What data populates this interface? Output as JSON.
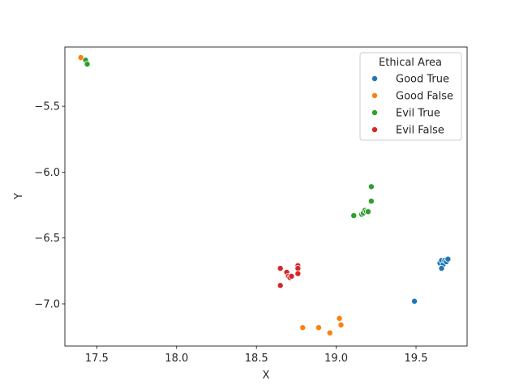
{
  "chart_data": {
    "type": "scatter",
    "title": "",
    "xlabel": "X",
    "ylabel": "Y",
    "xlim": [
      17.3,
      19.82
    ],
    "ylim": [
      -7.32,
      -5.05
    ],
    "xticks": [
      17.5,
      18.0,
      18.5,
      19.0,
      19.5
    ],
    "xtick_labels": [
      "17.5",
      "18.0",
      "18.5",
      "19.0",
      "19.5"
    ],
    "yticks": [
      -5.5,
      -6.0,
      -6.5,
      -7.0
    ],
    "ytick_labels": [
      "−5.5",
      "−6.0",
      "−6.5",
      "−7.0"
    ],
    "grid": false,
    "legend": {
      "title": "Ethical Area",
      "placement": "upper right"
    },
    "series": [
      {
        "name": "Good True",
        "color": "#1f77b4",
        "points": [
          [
            19.49,
            -6.98
          ],
          [
            19.65,
            -6.69
          ],
          [
            19.66,
            -6.67
          ],
          [
            19.67,
            -6.7
          ],
          [
            19.68,
            -6.67
          ],
          [
            19.69,
            -6.68
          ],
          [
            19.7,
            -6.66
          ],
          [
            19.66,
            -6.73
          ]
        ]
      },
      {
        "name": "Good False",
        "color": "#ff7f0e",
        "points": [
          [
            17.4,
            -5.13
          ],
          [
            18.79,
            -7.18
          ],
          [
            18.89,
            -7.18
          ],
          [
            18.96,
            -7.22
          ],
          [
            19.02,
            -7.11
          ],
          [
            19.03,
            -7.16
          ]
        ]
      },
      {
        "name": "Evil True",
        "color": "#2ca02c",
        "points": [
          [
            17.43,
            -5.15
          ],
          [
            17.44,
            -5.18
          ],
          [
            19.22,
            -6.11
          ],
          [
            19.22,
            -6.22
          ],
          [
            19.11,
            -6.33
          ],
          [
            19.16,
            -6.32
          ],
          [
            19.17,
            -6.31
          ],
          [
            19.18,
            -6.29
          ],
          [
            19.19,
            -6.3
          ],
          [
            19.2,
            -6.3
          ]
        ]
      },
      {
        "name": "Evil False",
        "color": "#d62728",
        "points": [
          [
            18.65,
            -6.73
          ],
          [
            18.65,
            -6.86
          ],
          [
            18.69,
            -6.76
          ],
          [
            18.7,
            -6.79
          ],
          [
            18.71,
            -6.8
          ],
          [
            18.72,
            -6.79
          ],
          [
            18.76,
            -6.71
          ],
          [
            18.76,
            -6.73
          ],
          [
            18.76,
            -6.77
          ]
        ]
      }
    ]
  }
}
